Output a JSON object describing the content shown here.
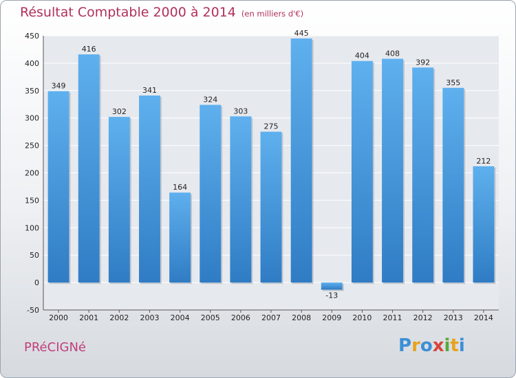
{
  "chart_data": {
    "type": "bar",
    "title": "Résultat Comptable 2000 à 2014",
    "subtitle": "(en milliers d'€)",
    "categories": [
      "2000",
      "2001",
      "2002",
      "2003",
      "2004",
      "2005",
      "2006",
      "2007",
      "2008",
      "2009",
      "2010",
      "2011",
      "2012",
      "2013",
      "2014"
    ],
    "values": [
      349,
      416,
      302,
      341,
      164,
      324,
      303,
      275,
      445,
      -13,
      404,
      408,
      392,
      355,
      212
    ],
    "data_labels": [
      "349",
      "416",
      "302",
      "341",
      "164",
      "324",
      "303",
      "275",
      "445",
      "-13",
      "404",
      "408",
      "392",
      "355",
      "212"
    ],
    "ylim": [
      -50,
      450
    ],
    "yticks": [
      -50,
      0,
      50,
      100,
      150,
      200,
      250,
      300,
      350,
      400,
      450
    ],
    "grid": true,
    "bar_color": "#3c8fd8",
    "title_color": "#b0305a"
  },
  "footer": {
    "town": "PRéCIGNé",
    "logo_letters": [
      "P",
      "r",
      "o",
      "x",
      "i",
      "t",
      "i"
    ],
    "logo_colors": [
      "#3b8fd6",
      "#e8a21e",
      "#3b8fd6",
      "#d8433a",
      "#5aa83a",
      "#e8a21e",
      "#3b8fd6"
    ]
  }
}
